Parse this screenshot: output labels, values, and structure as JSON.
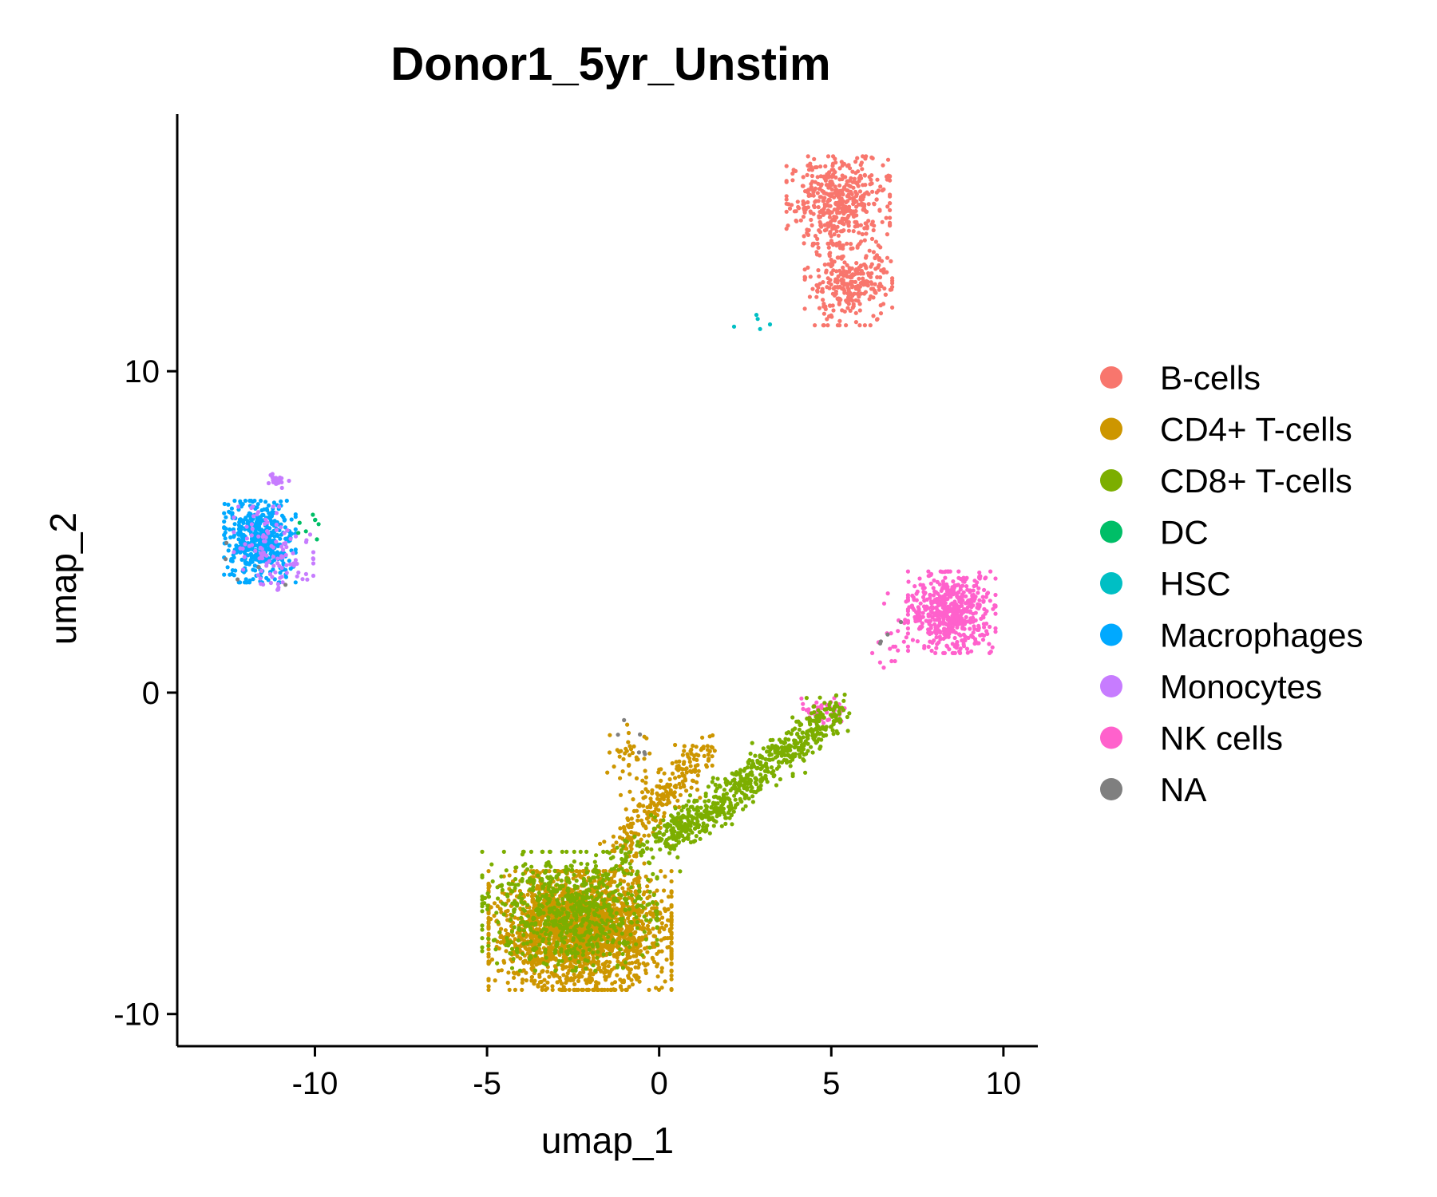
{
  "chart_data": {
    "type": "scatter",
    "title": "Donor1_5yr_Unstim",
    "xlabel": "umap_1",
    "ylabel": "umap_2",
    "xlim": [
      -14,
      11
    ],
    "ylim": [
      -11,
      18
    ],
    "xticks": [
      -10,
      -5,
      0,
      5,
      10
    ],
    "xtick_labels": [
      "-10",
      "-5",
      "0",
      "5",
      "10"
    ],
    "yticks": [
      -10,
      0,
      10
    ],
    "ytick_labels": [
      "-10",
      "0",
      "10"
    ],
    "grid": false,
    "legend_position": "right",
    "legend": [
      {
        "label": "B-cells",
        "color": "#F8766D"
      },
      {
        "label": "CD4+ T-cells",
        "color": "#CD9600"
      },
      {
        "label": "CD8+ T-cells",
        "color": "#7CAE00"
      },
      {
        "label": "DC",
        "color": "#00BE67"
      },
      {
        "label": "HSC",
        "color": "#00BFC4"
      },
      {
        "label": "Macrophages",
        "color": "#00A9FF"
      },
      {
        "label": "Monocytes",
        "color": "#C77CFF"
      },
      {
        "label": "NK cells",
        "color": "#FF61CC"
      },
      {
        "label": "NA",
        "color": "#7F7F7F"
      }
    ],
    "clusters": [
      {
        "category": "B-cells",
        "shape": "ellipse",
        "center": [
          5.2,
          15.3
        ],
        "spread": [
          1.3,
          1.2
        ],
        "n": 450
      },
      {
        "category": "B-cells",
        "shape": "ellipse",
        "center": [
          5.5,
          12.7
        ],
        "spread": [
          1.1,
          1.1
        ],
        "n": 300
      },
      {
        "category": "NK cells",
        "shape": "ellipse",
        "center": [
          8.5,
          2.5
        ],
        "spread": [
          1.1,
          1.1
        ],
        "n": 550
      },
      {
        "category": "NK cells",
        "shape": "segment",
        "from": [
          6.6,
          0.8
        ],
        "to": [
          7.3,
          2.8
        ],
        "n": 25
      },
      {
        "category": "NK cells",
        "shape": "ellipse",
        "center": [
          4.8,
          -0.6
        ],
        "spread": [
          0.7,
          0.5
        ],
        "n": 40
      },
      {
        "category": "Macrophages",
        "shape": "ellipse",
        "center": [
          -11.6,
          4.7
        ],
        "spread": [
          0.9,
          1.1
        ],
        "n": 480
      },
      {
        "category": "Monocytes",
        "shape": "ellipse",
        "center": [
          -11.2,
          4.4
        ],
        "spread": [
          1.0,
          1.2
        ],
        "n": 110
      },
      {
        "category": "Monocytes",
        "shape": "ellipse",
        "center": [
          -11.1,
          6.6
        ],
        "spread": [
          0.3,
          0.2
        ],
        "n": 25
      },
      {
        "category": "DC",
        "shape": "segment",
        "from": [
          -10.3,
          5.0
        ],
        "to": [
          -10.0,
          5.5
        ],
        "n": 8
      },
      {
        "category": "HSC",
        "shape": "segment",
        "from": [
          2.4,
          11.4
        ],
        "to": [
          3.0,
          11.7
        ],
        "n": 5
      },
      {
        "category": "CD4+ T-cells",
        "shape": "ellipse",
        "center": [
          -2.3,
          -7.4
        ],
        "spread": [
          2.3,
          1.6
        ],
        "n": 2100
      },
      {
        "category": "CD8+ T-cells",
        "shape": "ellipse",
        "center": [
          -2.6,
          -6.8
        ],
        "spread": [
          2.2,
          1.6
        ],
        "n": 700
      },
      {
        "category": "CD4+ T-cells",
        "shape": "segment",
        "from": [
          -1.2,
          -5.0
        ],
        "to": [
          1.3,
          -1.7
        ],
        "n": 260
      },
      {
        "category": "CD4+ T-cells",
        "shape": "segment",
        "from": [
          -0.9,
          -1.4
        ],
        "to": [
          -0.7,
          -3.0
        ],
        "n": 40
      },
      {
        "category": "CD8+ T-cells",
        "shape": "segment",
        "from": [
          0.3,
          -4.6
        ],
        "to": [
          5.2,
          -0.6
        ],
        "n": 650
      },
      {
        "category": "CD8+ T-cells",
        "shape": "segment",
        "from": [
          -1.5,
          -5.5
        ],
        "to": [
          0.8,
          -3.8
        ],
        "n": 80
      },
      {
        "category": "NA",
        "shape": "segment",
        "from": [
          -0.9,
          -1.3
        ],
        "to": [
          -0.6,
          -1.6
        ],
        "n": 6
      },
      {
        "category": "NA",
        "shape": "segment",
        "from": [
          6.7,
          1.9
        ],
        "to": [
          6.9,
          2.2
        ],
        "n": 4
      },
      {
        "category": "NA",
        "shape": "segment",
        "from": [
          -12.5,
          4.3
        ],
        "to": [
          -11.2,
          3.6
        ],
        "n": 5
      }
    ]
  }
}
